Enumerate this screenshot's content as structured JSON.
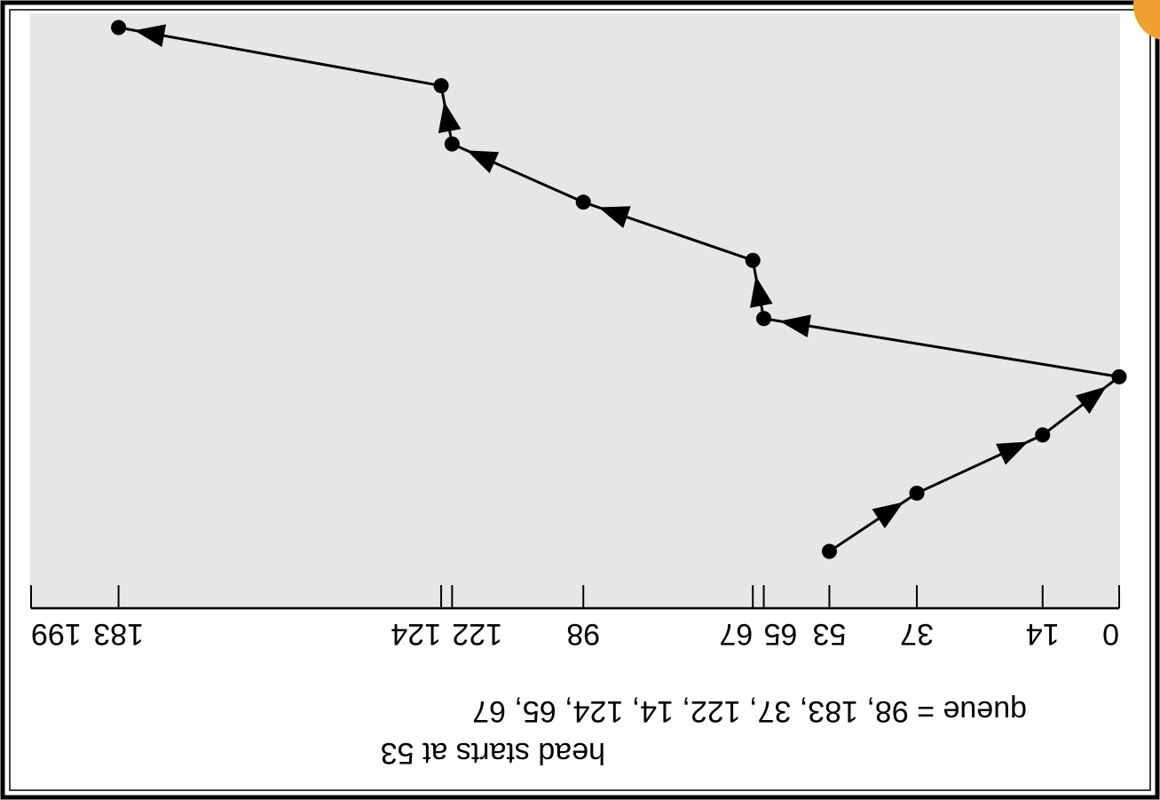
{
  "chart_data": {
    "type": "line",
    "title": "",
    "xlabel": "",
    "ylabel": "",
    "xlim": [
      0,
      199
    ],
    "axis_ticks": [
      0,
      14,
      37,
      53,
      65,
      67,
      98,
      122,
      124,
      183,
      199
    ],
    "tick_labels": [
      "0",
      "14",
      "37",
      "53",
      "65",
      "67",
      "98",
      "122",
      "124",
      "183",
      "199"
    ],
    "series": [
      {
        "x": [
          53,
          37,
          14,
          0,
          65,
          67,
          98,
          122,
          124,
          183
        ]
      }
    ],
    "annotations": [
      "queue = 98, 183, 37, 122, 14, 124, 65, 67",
      "head starts at 53"
    ],
    "grid": false,
    "colors": {
      "plot_background": "#e6e6e6",
      "line": "#000000",
      "frame": "#000000"
    }
  },
  "caption": {
    "queue": "queue = 98, 183, 37, 122, 14, 124, 65, 67",
    "head": "head starts at 53"
  },
  "icons": [
    "right-arrow-icon",
    "logo-badge"
  ]
}
